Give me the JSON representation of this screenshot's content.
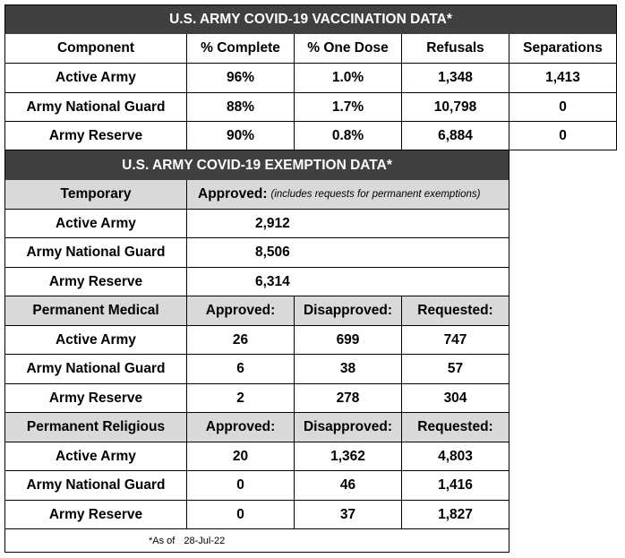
{
  "vaccination": {
    "title": "U.S. ARMY COVID-19 VACCINATION DATA*",
    "headers": [
      "Component",
      "% Complete",
      "% One Dose",
      "Refusals",
      "Separations"
    ],
    "rows": [
      [
        "Active Army",
        "96%",
        "1.0%",
        "1,348",
        "1,413"
      ],
      [
        "Army National Guard",
        "88%",
        "1.7%",
        "10,798",
        "0"
      ],
      [
        "Army Reserve",
        "90%",
        "0.8%",
        "6,884",
        "0"
      ]
    ]
  },
  "exemption": {
    "title": "U.S. ARMY COVID-19 EXEMPTION DATA*",
    "temporary": {
      "label": "Temporary",
      "approved_label": "Approved:",
      "approved_note": "(includes requests for permanent exemptions)",
      "rows": [
        [
          "Active Army",
          "2,912"
        ],
        [
          "Army National Guard",
          "8,506"
        ],
        [
          "Army Reserve",
          "6,314"
        ]
      ]
    },
    "medical": {
      "headers": [
        "Permanent Medical",
        "Approved:",
        "Disapproved:",
        "Requested:"
      ],
      "rows": [
        [
          "Active Army",
          "26",
          "699",
          "747"
        ],
        [
          "Army National Guard",
          "6",
          "38",
          "57"
        ],
        [
          "Army Reserve",
          "2",
          "278",
          "304"
        ]
      ]
    },
    "religious": {
      "headers": [
        "Permanent Religious",
        "Approved:",
        "Disapproved:",
        "Requested:"
      ],
      "rows": [
        [
          "Active Army",
          "20",
          "1,362",
          "4,803"
        ],
        [
          "Army National Guard",
          "0",
          "46",
          "1,416"
        ],
        [
          "Army Reserve",
          "0",
          "37",
          "1,827"
        ]
      ]
    }
  },
  "footnote": {
    "label": "*As of",
    "date": "28-Jul-22"
  }
}
